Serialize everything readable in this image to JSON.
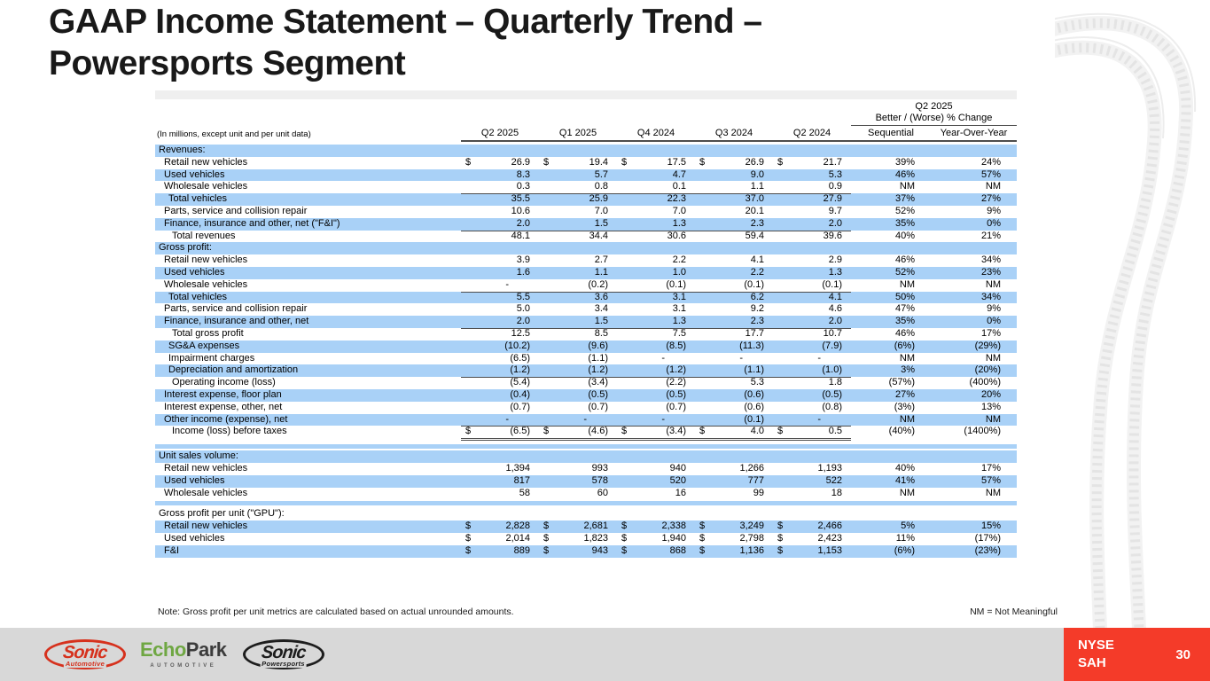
{
  "slide": {
    "title_line1": "GAAP Income Statement – Quarterly Trend –",
    "title_line2": "Powersports Segment",
    "note": "Note: Gross profit per unit metrics are calculated based on actual unrounded amounts.",
    "nm_note": "NM = Not Meaningful",
    "page_number": "30",
    "ticker": {
      "exchange": "NYSE",
      "symbol": "SAH"
    }
  },
  "table": {
    "caption": "(In millions, except unit and per unit data)",
    "change_header": {
      "line1": "Q2 2025",
      "line2": "Better / (Worse) % Change"
    },
    "quarter_columns": [
      "Q2 2025",
      "Q1 2025",
      "Q4 2024",
      "Q3 2024",
      "Q2 2024"
    ],
    "change_columns": [
      "Sequential",
      "Year-Over-Year"
    ],
    "rows": [
      {
        "type": "section",
        "label": "Revenues:",
        "shade": "b"
      },
      {
        "type": "item",
        "indent": 1,
        "label": "Retail new vehicles",
        "shade": "w",
        "dollar": true,
        "values": [
          "26.9",
          "19.4",
          "17.5",
          "26.9",
          "21.7"
        ],
        "seq": "39%",
        "yoy": "24%"
      },
      {
        "type": "item",
        "indent": 1,
        "label": "Used vehicles",
        "shade": "b",
        "dollar": false,
        "values": [
          "8.3",
          "5.7",
          "4.7",
          "9.0",
          "5.3"
        ],
        "seq": "46%",
        "yoy": "57%"
      },
      {
        "type": "item",
        "indent": 1,
        "label": "Wholesale vehicles",
        "shade": "w",
        "dollar": false,
        "values": [
          "0.3",
          "0.8",
          "0.1",
          "1.1",
          "0.9"
        ],
        "seq": "NM",
        "yoy": "NM",
        "rule": "s"
      },
      {
        "type": "item",
        "indent": 2,
        "label": "Total vehicles",
        "shade": "b",
        "dollar": false,
        "values": [
          "35.5",
          "25.9",
          "22.3",
          "37.0",
          "27.9"
        ],
        "seq": "37%",
        "yoy": "27%"
      },
      {
        "type": "item",
        "indent": 1,
        "label": "Parts, service and collision repair",
        "shade": "w",
        "dollar": false,
        "values": [
          "10.6",
          "7.0",
          "7.0",
          "20.1",
          "9.7"
        ],
        "seq": "52%",
        "yoy": "9%"
      },
      {
        "type": "item",
        "indent": 1,
        "label": "Finance, insurance and other, net (\"F&I\")",
        "shade": "b",
        "dollar": false,
        "values": [
          "2.0",
          "1.5",
          "1.3",
          "2.3",
          "2.0"
        ],
        "seq": "35%",
        "yoy": "0%",
        "rule": "s"
      },
      {
        "type": "item",
        "indent": 3,
        "label": "Total revenues",
        "shade": "w",
        "dollar": false,
        "values": [
          "48.1",
          "34.4",
          "30.6",
          "59.4",
          "39.6"
        ],
        "seq": "40%",
        "yoy": "21%"
      },
      {
        "type": "section",
        "label": "Gross profit:",
        "shade": "b"
      },
      {
        "type": "item",
        "indent": 1,
        "label": "Retail new vehicles",
        "shade": "w",
        "dollar": false,
        "values": [
          "3.9",
          "2.7",
          "2.2",
          "4.1",
          "2.9"
        ],
        "seq": "46%",
        "yoy": "34%"
      },
      {
        "type": "item",
        "indent": 1,
        "label": "Used vehicles",
        "shade": "b",
        "dollar": false,
        "values": [
          "1.6",
          "1.1",
          "1.0",
          "2.2",
          "1.3"
        ],
        "seq": "52%",
        "yoy": "23%"
      },
      {
        "type": "item",
        "indent": 1,
        "label": "Wholesale vehicles",
        "shade": "w",
        "dollar": false,
        "values": [
          "-",
          "(0.2)",
          "(0.1)",
          "(0.1)",
          "(0.1)"
        ],
        "seq": "NM",
        "yoy": "NM",
        "rule": "s"
      },
      {
        "type": "item",
        "indent": 2,
        "label": "Total vehicles",
        "shade": "b",
        "dollar": false,
        "values": [
          "5.5",
          "3.6",
          "3.1",
          "6.2",
          "4.1"
        ],
        "seq": "50%",
        "yoy": "34%"
      },
      {
        "type": "item",
        "indent": 1,
        "label": "Parts, service and collision repair",
        "shade": "w",
        "dollar": false,
        "values": [
          "5.0",
          "3.4",
          "3.1",
          "9.2",
          "4.6"
        ],
        "seq": "47%",
        "yoy": "9%"
      },
      {
        "type": "item",
        "indent": 1,
        "label": "Finance, insurance and other, net",
        "shade": "b",
        "dollar": false,
        "values": [
          "2.0",
          "1.5",
          "1.3",
          "2.3",
          "2.0"
        ],
        "seq": "35%",
        "yoy": "0%",
        "rule": "s"
      },
      {
        "type": "item",
        "indent": 3,
        "label": "Total gross profit",
        "shade": "w",
        "dollar": false,
        "values": [
          "12.5",
          "8.5",
          "7.5",
          "17.7",
          "10.7"
        ],
        "seq": "46%",
        "yoy": "17%"
      },
      {
        "type": "item",
        "indent": 2,
        "label": "SG&A expenses",
        "shade": "b",
        "dollar": false,
        "values": [
          "(10.2)",
          "(9.6)",
          "(8.5)",
          "(11.3)",
          "(7.9)"
        ],
        "seq": "(6%)",
        "yoy": "(29%)"
      },
      {
        "type": "item",
        "indent": 2,
        "label": "Impairment charges",
        "shade": "w",
        "dollar": false,
        "values": [
          "(6.5)",
          "(1.1)",
          "-",
          "-",
          "-"
        ],
        "seq": "NM",
        "yoy": "NM"
      },
      {
        "type": "item",
        "indent": 2,
        "label": "Depreciation and amortization",
        "shade": "b",
        "dollar": false,
        "values": [
          "(1.2)",
          "(1.2)",
          "(1.2)",
          "(1.1)",
          "(1.0)"
        ],
        "seq": "3%",
        "yoy": "(20%)",
        "rule": "s"
      },
      {
        "type": "item",
        "indent": 3,
        "label": "Operating income (loss)",
        "shade": "w",
        "dollar": false,
        "values": [
          "(5.4)",
          "(3.4)",
          "(2.2)",
          "5.3",
          "1.8"
        ],
        "seq": "(57%)",
        "yoy": "(400%)"
      },
      {
        "type": "item",
        "indent": 1,
        "label": "Interest expense, floor plan",
        "shade": "b",
        "dollar": false,
        "values": [
          "(0.4)",
          "(0.5)",
          "(0.5)",
          "(0.6)",
          "(0.5)"
        ],
        "seq": "27%",
        "yoy": "20%"
      },
      {
        "type": "item",
        "indent": 1,
        "label": "Interest expense, other, net",
        "shade": "w",
        "dollar": false,
        "values": [
          "(0.7)",
          "(0.7)",
          "(0.7)",
          "(0.6)",
          "(0.8)"
        ],
        "seq": "(3%)",
        "yoy": "13%"
      },
      {
        "type": "item",
        "indent": 1,
        "label": "Other income (expense), net",
        "shade": "b",
        "dollar": false,
        "values": [
          "-",
          "-",
          "-",
          "(0.1)",
          "-"
        ],
        "seq": "NM",
        "yoy": "NM",
        "rule": "s"
      },
      {
        "type": "item",
        "indent": 3,
        "label": "Income (loss) before taxes",
        "shade": "w",
        "dollar": true,
        "values": [
          "(6.5)",
          "(4.6)",
          "(3.4)",
          "4.0",
          "0.5"
        ],
        "seq": "(40%)",
        "yoy": "(1400%)",
        "rule": "d"
      },
      {
        "type": "gap",
        "h": 7
      },
      {
        "type": "bar",
        "h": 5
      },
      {
        "type": "gap",
        "h": 2
      },
      {
        "type": "section",
        "label": "Unit sales volume:",
        "shade": "b"
      },
      {
        "type": "item",
        "indent": 1,
        "label": "Retail new vehicles",
        "shade": "w",
        "dollar": false,
        "values": [
          "1,394",
          "993",
          "940",
          "1,266",
          "1,193"
        ],
        "seq": "40%",
        "yoy": "17%"
      },
      {
        "type": "item",
        "indent": 1,
        "label": "Used vehicles",
        "shade": "b",
        "dollar": false,
        "values": [
          "817",
          "578",
          "520",
          "777",
          "522"
        ],
        "seq": "41%",
        "yoy": "57%"
      },
      {
        "type": "item",
        "indent": 1,
        "label": "Wholesale vehicles",
        "shade": "w",
        "dollar": false,
        "values": [
          "58",
          "60",
          "16",
          "99",
          "18"
        ],
        "seq": "NM",
        "yoy": "NM"
      },
      {
        "type": "gap",
        "h": 2
      },
      {
        "type": "bar",
        "h": 5
      },
      {
        "type": "gap",
        "h": 3
      },
      {
        "type": "section",
        "label": "Gross profit per unit (\"GPU\"):",
        "shade": "w"
      },
      {
        "type": "item",
        "indent": 1,
        "label": "Retail new vehicles",
        "shade": "b",
        "dollar": true,
        "values": [
          "2,828",
          "2,681",
          "2,338",
          "3,249",
          "2,466"
        ],
        "seq": "5%",
        "yoy": "15%"
      },
      {
        "type": "item",
        "indent": 1,
        "label": "Used vehicles",
        "shade": "w",
        "dollar": true,
        "values": [
          "2,014",
          "1,823",
          "1,940",
          "2,798",
          "2,423"
        ],
        "seq": "11%",
        "yoy": "(17%)"
      },
      {
        "type": "item",
        "indent": 1,
        "label": "F&I",
        "shade": "b",
        "dollar": true,
        "values": [
          "889",
          "943",
          "868",
          "1,136",
          "1,153"
        ],
        "seq": "(6%)",
        "yoy": "(23%)"
      }
    ]
  },
  "footer": {
    "logos": [
      {
        "id": "sonic-automotive",
        "line1": "Sonic",
        "line2": "Automotive"
      },
      {
        "id": "echopark",
        "part1": "Echo",
        "part2": "Park",
        "line2": "AUTOMOTIVE"
      },
      {
        "id": "sonic-powersports",
        "line1": "Sonic",
        "line2": "Powersports"
      }
    ]
  },
  "colors": {
    "row_blue": "#a9d1f7",
    "header_strip_gray": "#efefef",
    "rule_dark": "#4d4d4d",
    "footer_gray": "#d8d8d8",
    "ticker_red": "#f43b29",
    "sonic_red": "#d6311d",
    "echopark_green": "#6fa743",
    "title_text": "#191919"
  }
}
